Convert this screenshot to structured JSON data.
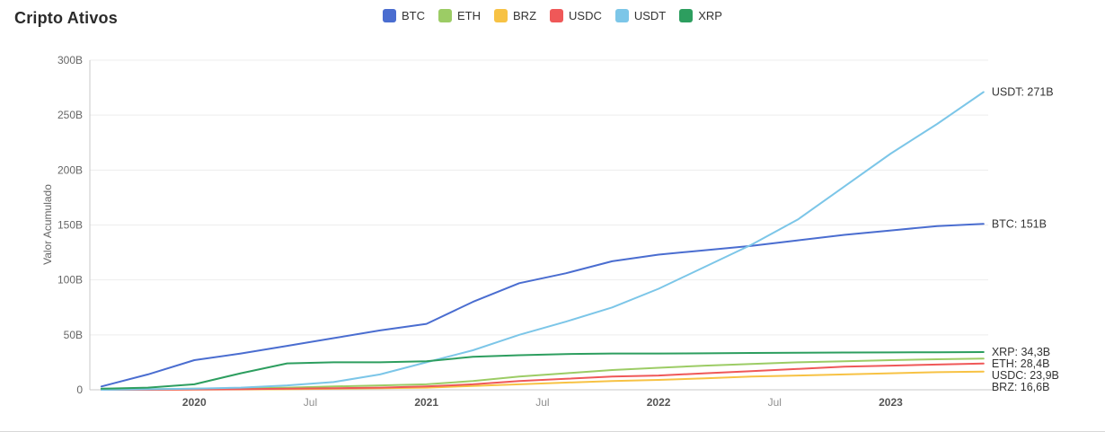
{
  "header": {
    "title": "Cripto Ativos"
  },
  "legend": [
    {
      "label": "BTC",
      "color": "#4a6dd0"
    },
    {
      "label": "ETH",
      "color": "#9ccc65"
    },
    {
      "label": "BRZ",
      "color": "#f7c244"
    },
    {
      "label": "USDC",
      "color": "#ef5858"
    },
    {
      "label": "USDT",
      "color": "#7cc6e8"
    },
    {
      "label": "XRP",
      "color": "#2d9e5f"
    }
  ],
  "chart_data": {
    "type": "line",
    "title": "Cripto Ativos",
    "xlabel": "",
    "ylabel": "Valor Acumulado",
    "ylim": [
      0,
      300
    ],
    "x_domain": [
      2019.55,
      2023.42
    ],
    "grid": true,
    "legend_position": "top-center",
    "y_ticks": [
      {
        "value": 0,
        "label": "0"
      },
      {
        "value": 50,
        "label": "50B"
      },
      {
        "value": 100,
        "label": "100B"
      },
      {
        "value": 150,
        "label": "150B"
      },
      {
        "value": 200,
        "label": "200B"
      },
      {
        "value": 250,
        "label": "250B"
      },
      {
        "value": 300,
        "label": "300B"
      }
    ],
    "x_ticks": [
      {
        "value": 2020.0,
        "label": "2020",
        "bold": true
      },
      {
        "value": 2020.5,
        "label": "Jul",
        "bold": false
      },
      {
        "value": 2021.0,
        "label": "2021",
        "bold": true
      },
      {
        "value": 2021.5,
        "label": "Jul",
        "bold": false
      },
      {
        "value": 2022.0,
        "label": "2022",
        "bold": true
      },
      {
        "value": 2022.5,
        "label": "Jul",
        "bold": false
      },
      {
        "value": 2023.0,
        "label": "2023",
        "bold": true
      }
    ],
    "x_unit": "year",
    "x": [
      2019.6,
      2019.8,
      2020.0,
      2020.2,
      2020.4,
      2020.6,
      2020.8,
      2021.0,
      2021.2,
      2021.4,
      2021.6,
      2021.8,
      2022.0,
      2022.2,
      2022.4,
      2022.6,
      2022.8,
      2023.0,
      2023.2,
      2023.4
    ],
    "series": [
      {
        "name": "BTC",
        "color": "#4a6dd0",
        "end_value": 151,
        "end_label": "BTC: 151B",
        "values": [
          3,
          14,
          27,
          33,
          40,
          47,
          54,
          60,
          80,
          97,
          106,
          117,
          123,
          127,
          131,
          136,
          141,
          145,
          149,
          151
        ]
      },
      {
        "name": "ETH",
        "color": "#9ccc65",
        "end_value": 28.4,
        "end_label": "ETH: 28,4B",
        "values": [
          0.3,
          0.5,
          1,
          1.5,
          2,
          3,
          4,
          5,
          8,
          12,
          15,
          18,
          20,
          22,
          23.5,
          25,
          26,
          27,
          27.8,
          28.4
        ]
      },
      {
        "name": "BRZ",
        "color": "#f7c244",
        "end_value": 16.6,
        "end_label": "BRZ: 16,6B",
        "values": [
          0,
          0,
          0.2,
          0.3,
          0.5,
          1,
          1.5,
          2,
          3.5,
          5,
          6.5,
          8,
          9,
          10.5,
          12,
          13,
          14,
          15,
          16,
          16.6
        ]
      },
      {
        "name": "USDC",
        "color": "#ef5858",
        "end_value": 23.9,
        "end_label": "USDC: 23,9B",
        "values": [
          0,
          0,
          0.3,
          0.5,
          1,
          1.5,
          2,
          3,
          5,
          8,
          10,
          12,
          13,
          15,
          17,
          19,
          21,
          22,
          23,
          23.9
        ]
      },
      {
        "name": "USDT",
        "color": "#7cc6e8",
        "end_value": 271,
        "end_label": "USDT: 271B",
        "values": [
          0,
          0.5,
          1,
          2,
          4,
          7,
          14,
          25,
          36,
          50,
          62,
          75,
          92,
          112,
          132,
          155,
          185,
          215,
          242,
          271
        ]
      },
      {
        "name": "XRP",
        "color": "#2d9e5f",
        "end_value": 34.3,
        "end_label": "XRP: 34,3B",
        "values": [
          1,
          2,
          5,
          15,
          24,
          25,
          25,
          26,
          30,
          31.5,
          32.5,
          33,
          33,
          33.2,
          33.5,
          33.7,
          33.9,
          34,
          34.2,
          34.3
        ]
      }
    ]
  }
}
